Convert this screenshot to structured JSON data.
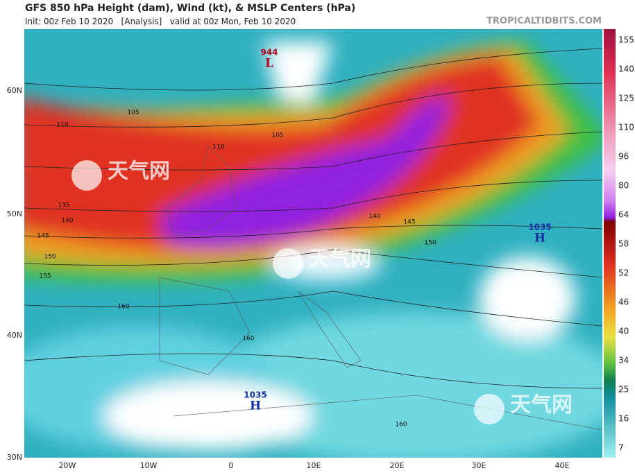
{
  "header": {
    "title": "GFS 850 hPa Height (dam), Wind (kt), & MSLP Centers (hPa)",
    "subtitle": "Init: 00z Feb 10 2020   [Analysis]   valid at 00z Mon, Feb 10 2020",
    "brand": "TROPICALTIDBITS.COM"
  },
  "map": {
    "lat_labels": [
      "60N",
      "50N",
      "40N",
      "30N"
    ],
    "lon_labels": [
      "20W",
      "10W",
      "0",
      "10E",
      "20E",
      "30E",
      "40E"
    ],
    "pressure_centers": [
      {
        "value": "944",
        "symbol": "L"
      },
      {
        "value": "1035",
        "symbol": "H"
      },
      {
        "value": "1035",
        "symbol": "H"
      }
    ],
    "contour_labels": [
      "105",
      "105",
      "110",
      "110",
      "135",
      "140",
      "145",
      "150",
      "155",
      "140",
      "145",
      "150",
      "160",
      "160",
      "160"
    ],
    "watermarks": [
      "天气网",
      "天气网",
      "天气网"
    ]
  },
  "colorbar": {
    "ticks": [
      "155",
      "140",
      "125",
      "110",
      "96",
      "80",
      "64",
      "58",
      "52",
      "46",
      "40",
      "34",
      "25",
      "16",
      "7"
    ]
  }
}
